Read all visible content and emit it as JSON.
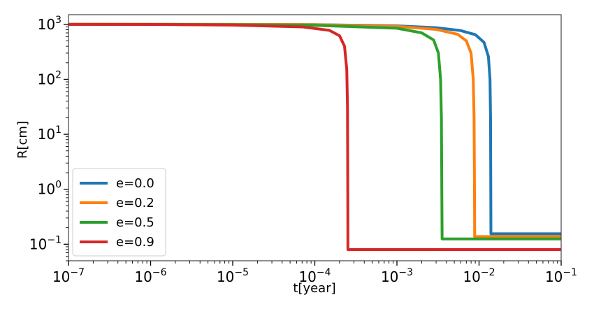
{
  "chart_data": {
    "type": "line",
    "xlabel": "t[year]",
    "ylabel": "R[cm]",
    "xscale": "log",
    "yscale": "log",
    "xlim": [
      1e-07,
      0.1
    ],
    "ylim": [
      0.05,
      1500
    ],
    "grid": false,
    "legend_position": "lower-left",
    "x_ticks": [
      {
        "value": 1e-07,
        "base": "10",
        "exp": "−7"
      },
      {
        "value": 1e-06,
        "base": "10",
        "exp": "−6"
      },
      {
        "value": 1e-05,
        "base": "10",
        "exp": "−5"
      },
      {
        "value": 0.0001,
        "base": "10",
        "exp": "−4"
      },
      {
        "value": 0.001,
        "base": "10",
        "exp": "−3"
      },
      {
        "value": 0.01,
        "base": "10",
        "exp": "−2"
      },
      {
        "value": 0.1,
        "base": "10",
        "exp": "−1"
      }
    ],
    "y_ticks": [
      {
        "value": 1000,
        "base": "10",
        "exp": "3"
      },
      {
        "value": 100,
        "base": "10",
        "exp": "2"
      },
      {
        "value": 10,
        "base": "10",
        "exp": "1"
      },
      {
        "value": 1,
        "base": "10",
        "exp": "0"
      },
      {
        "value": 0.1,
        "base": "10",
        "exp": "−1"
      }
    ],
    "series": [
      {
        "name": "e=0.0",
        "color": "#1f77b4",
        "points": [
          [
            1e-07,
            1000
          ],
          [
            1e-05,
            1000
          ],
          [
            0.0001,
            990
          ],
          [
            0.001,
            940
          ],
          [
            0.003,
            870
          ],
          [
            0.006,
            770
          ],
          [
            0.009,
            650
          ],
          [
            0.0115,
            470
          ],
          [
            0.013,
            260
          ],
          [
            0.0136,
            100
          ],
          [
            0.0138,
            20
          ],
          [
            0.0139,
            1
          ],
          [
            0.01395,
            0.155
          ],
          [
            0.1,
            0.155
          ]
        ]
      },
      {
        "name": "e=0.2",
        "color": "#ff7f0e",
        "points": [
          [
            1e-07,
            1000
          ],
          [
            1e-05,
            1000
          ],
          [
            0.0001,
            985
          ],
          [
            0.001,
            920
          ],
          [
            0.003,
            810
          ],
          [
            0.0055,
            660
          ],
          [
            0.007,
            500
          ],
          [
            0.008,
            300
          ],
          [
            0.0085,
            100
          ],
          [
            0.0087,
            20
          ],
          [
            0.0088,
            1
          ],
          [
            0.00885,
            0.138
          ],
          [
            0.1,
            0.138
          ]
        ]
      },
      {
        "name": "e=0.5",
        "color": "#2ca02c",
        "points": [
          [
            1e-07,
            1000
          ],
          [
            1e-06,
            1000
          ],
          [
            1e-05,
            990
          ],
          [
            0.0001,
            960
          ],
          [
            0.001,
            850
          ],
          [
            0.002,
            700
          ],
          [
            0.0028,
            520
          ],
          [
            0.0032,
            300
          ],
          [
            0.0034,
            100
          ],
          [
            0.00348,
            20
          ],
          [
            0.00352,
            1
          ],
          [
            0.00355,
            0.125
          ],
          [
            0.1,
            0.125
          ]
        ]
      },
      {
        "name": "e=0.9",
        "color": "#d62728",
        "points": [
          [
            1e-07,
            1000
          ],
          [
            1e-06,
            995
          ],
          [
            1e-05,
            970
          ],
          [
            7e-05,
            900
          ],
          [
            0.00015,
            780
          ],
          [
            0.0002,
            620
          ],
          [
            0.00023,
            400
          ],
          [
            0.000245,
            150
          ],
          [
            0.00025,
            30
          ],
          [
            0.000252,
            1
          ],
          [
            0.000253,
            0.08
          ],
          [
            0.1,
            0.08
          ]
        ]
      }
    ]
  }
}
